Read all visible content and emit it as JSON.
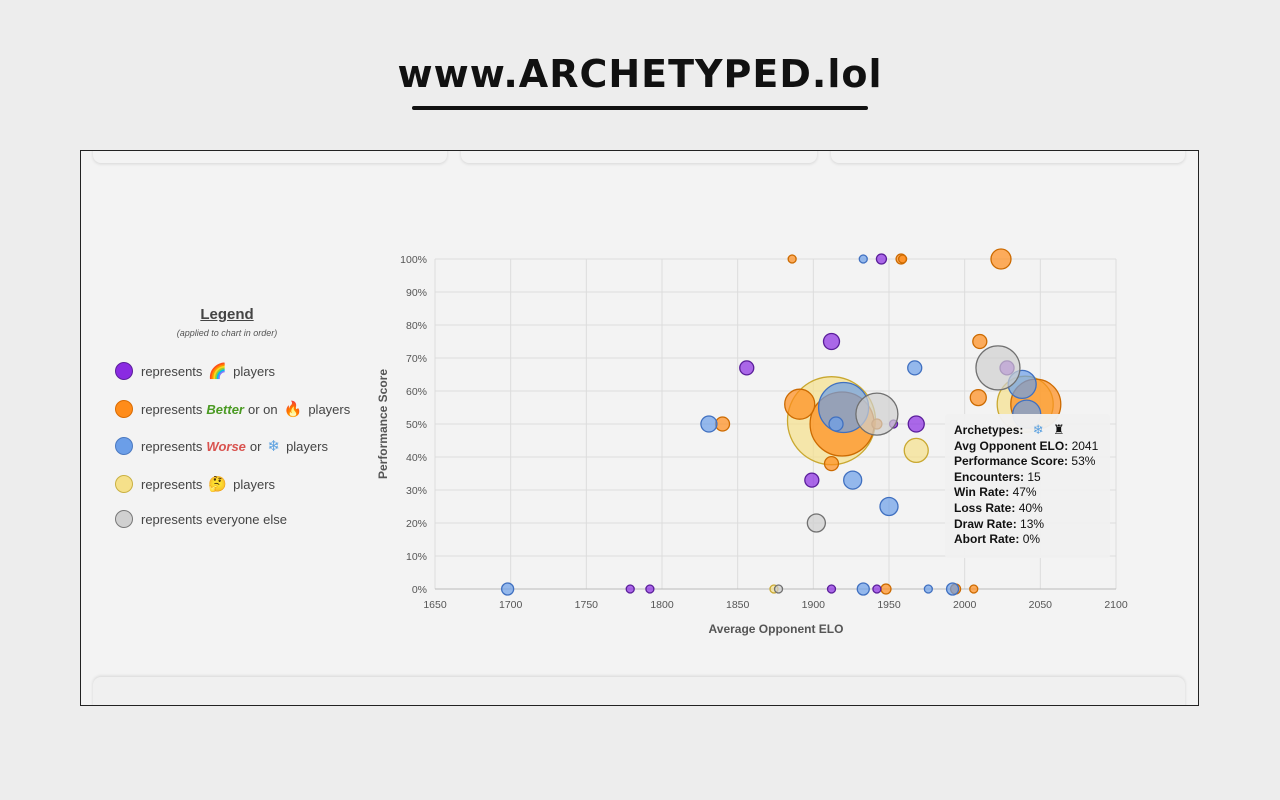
{
  "brand": {
    "text": "www.ARCHETYPED.lol"
  },
  "legend": {
    "title": "Legend",
    "subtitle": "(applied to chart in order)",
    "rows": {
      "r1": {
        "pre": "represents",
        "post": "players",
        "color": "#8a2be2",
        "border": "#5a1e9a",
        "icon": "rainbow-card-icon"
      },
      "r2": {
        "pre": "represents",
        "keyword": "Better",
        "mid": "or on",
        "post": "players",
        "color": "#ff8c1a",
        "border": "#d96a00",
        "icon": "fire-icon"
      },
      "r3": {
        "pre": "represents",
        "keyword": "Worse",
        "mid": "or",
        "post": "players",
        "color": "#6b9ee8",
        "border": "#4a78c0",
        "icon": "snowflake-icon"
      },
      "r4": {
        "pre": "represents",
        "post": "players",
        "color": "#f5e08a",
        "border": "#c9b040",
        "icon": "thinking-face-icon"
      },
      "r5": {
        "text": "represents everyone else",
        "color": "#d0d0d0",
        "border": "#777777"
      }
    }
  },
  "tooltip": {
    "archetypes_label": "Archetypes:",
    "lines": [
      {
        "label": "Avg Opponent ELO:",
        "value": "2041"
      },
      {
        "label": "Performance Score:",
        "value": "53%"
      },
      {
        "label": "Encounters:",
        "value": "15"
      },
      {
        "label": "Win Rate:",
        "value": "47%"
      },
      {
        "label": "Loss Rate:",
        "value": "40%"
      },
      {
        "label": "Draw Rate:",
        "value": "13%"
      },
      {
        "label": "Abort Rate:",
        "value": "0%"
      }
    ]
  },
  "chart_data": {
    "type": "scatter",
    "xlabel": "Average Opponent ELO",
    "ylabel": "Performance Score",
    "xlim": [
      1650,
      2100
    ],
    "ylim": [
      0,
      100
    ],
    "x_ticks": [
      1650,
      1700,
      1750,
      1800,
      1850,
      1900,
      1950,
      2000,
      2050,
      2100
    ],
    "y_ticks": [
      0,
      10,
      20,
      30,
      40,
      50,
      60,
      70,
      80,
      90,
      100
    ],
    "y_tick_suffix": "%",
    "grid": true,
    "series": [
      {
        "key": "yellow",
        "color": "#f5e08a",
        "stroke": "#c9a830",
        "points": [
          {
            "x": 1912,
            "y": 51,
            "r": 44
          },
          {
            "x": 2040,
            "y": 56,
            "r": 28
          },
          {
            "x": 1968,
            "y": 42,
            "r": 12
          },
          {
            "x": 1874,
            "y": 0,
            "r": 4
          }
        ]
      },
      {
        "key": "orange",
        "color": "#ff8c1a",
        "stroke": "#cc6a00",
        "points": [
          {
            "x": 1919,
            "y": 50,
            "r": 32
          },
          {
            "x": 2047,
            "y": 56,
            "r": 25
          },
          {
            "x": 1891,
            "y": 56,
            "r": 15
          },
          {
            "x": 2024,
            "y": 100,
            "r": 10
          },
          {
            "x": 2010,
            "y": 75,
            "r": 7
          },
          {
            "x": 2009,
            "y": 58,
            "r": 8
          },
          {
            "x": 1840,
            "y": 50,
            "r": 7
          },
          {
            "x": 1912,
            "y": 38,
            "r": 7
          },
          {
            "x": 1942,
            "y": 50,
            "r": 5
          },
          {
            "x": 1886,
            "y": 100,
            "r": 4
          },
          {
            "x": 1958,
            "y": 100,
            "r": 5
          },
          {
            "x": 1959,
            "y": 100,
            "r": 4
          },
          {
            "x": 1948,
            "y": 0,
            "r": 5
          },
          {
            "x": 1994,
            "y": 0,
            "r": 5
          },
          {
            "x": 2006,
            "y": 0,
            "r": 4
          }
        ]
      },
      {
        "key": "blue",
        "color": "#6b9ee8",
        "stroke": "#4070c0",
        "points": [
          {
            "x": 1920,
            "y": 55,
            "r": 25
          },
          {
            "x": 2041,
            "y": 53,
            "r": 14
          },
          {
            "x": 2038,
            "y": 62,
            "r": 14
          },
          {
            "x": 1967,
            "y": 67,
            "r": 7
          },
          {
            "x": 1831,
            "y": 50,
            "r": 8
          },
          {
            "x": 1915,
            "y": 50,
            "r": 7
          },
          {
            "x": 1926,
            "y": 33,
            "r": 9
          },
          {
            "x": 1950,
            "y": 25,
            "r": 9
          },
          {
            "x": 1698,
            "y": 0,
            "r": 6
          },
          {
            "x": 1933,
            "y": 0,
            "r": 6
          },
          {
            "x": 1976,
            "y": 0,
            "r": 4
          },
          {
            "x": 1992,
            "y": 0,
            "r": 6
          },
          {
            "x": 1933,
            "y": 100,
            "r": 4
          }
        ]
      },
      {
        "key": "purple",
        "color": "#8a2be2",
        "stroke": "#5a1e9a",
        "points": [
          {
            "x": 1912,
            "y": 75,
            "r": 8
          },
          {
            "x": 1856,
            "y": 67,
            "r": 7
          },
          {
            "x": 1945,
            "y": 100,
            "r": 5
          },
          {
            "x": 2028,
            "y": 67,
            "r": 7
          },
          {
            "x": 1968,
            "y": 50,
            "r": 8
          },
          {
            "x": 1953,
            "y": 50,
            "r": 4
          },
          {
            "x": 1899,
            "y": 33,
            "r": 7
          },
          {
            "x": 1779,
            "y": 0,
            "r": 4
          },
          {
            "x": 1792,
            "y": 0,
            "r": 4
          },
          {
            "x": 1912,
            "y": 0,
            "r": 4
          },
          {
            "x": 1942,
            "y": 0,
            "r": 4
          }
        ]
      },
      {
        "key": "gray",
        "color": "#cfcfcf",
        "stroke": "#707070",
        "points": [
          {
            "x": 2022,
            "y": 67,
            "r": 22
          },
          {
            "x": 1942,
            "y": 53,
            "r": 21
          },
          {
            "x": 1902,
            "y": 20,
            "r": 9
          },
          {
            "x": 1877,
            "y": 0,
            "r": 4
          }
        ]
      }
    ]
  }
}
